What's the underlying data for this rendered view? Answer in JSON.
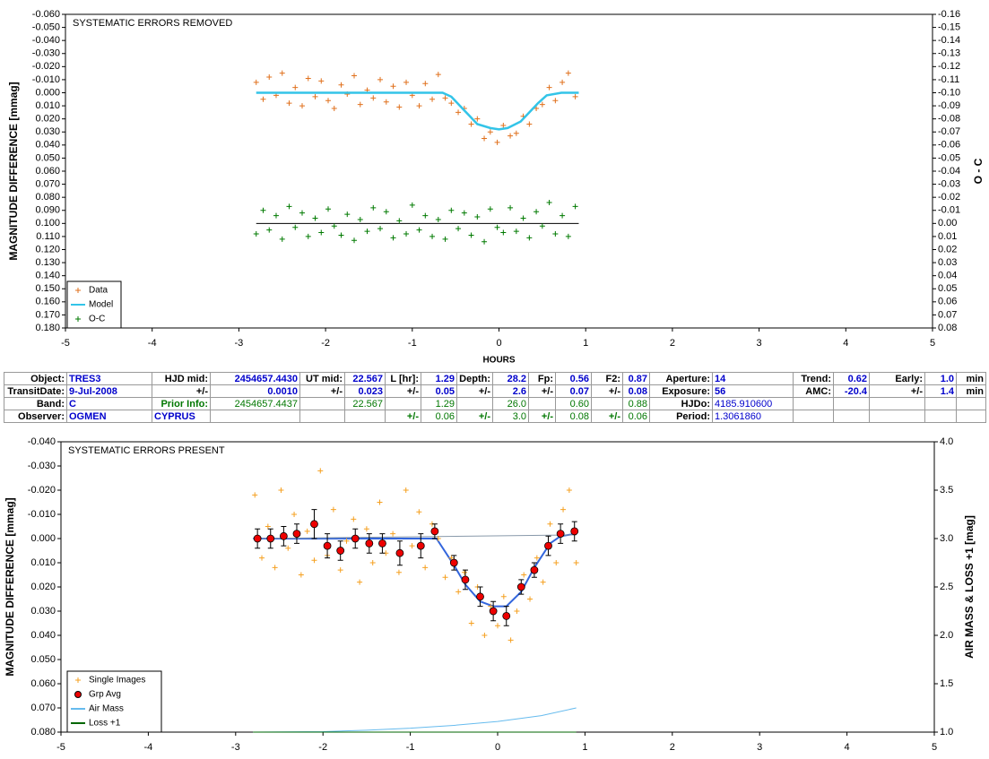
{
  "chart_data": [
    {
      "type": "scatter",
      "title": "SYSTEMATIC ERRORS REMOVED",
      "x_label": "HOURS",
      "y_label": "MAGNITUDE DIFFERENCE [mmag]",
      "y2_label": "O - C",
      "xlim": [
        -5,
        5
      ],
      "xticks": [
        -5,
        -4,
        -3,
        -2,
        -1,
        0,
        1,
        2,
        3,
        4,
        5
      ],
      "ylim": [
        -0.06,
        0.18
      ],
      "y_inverted": true,
      "yticks": [
        {
          "value": -0.06,
          "label": "-0.060"
        },
        {
          "value": -0.05,
          "label": "-0.050"
        },
        {
          "value": -0.04,
          "label": "-0.040"
        },
        {
          "value": -0.03,
          "label": "-0.030"
        },
        {
          "value": -0.02,
          "label": "-0.020"
        },
        {
          "value": -0.01,
          "label": "-0.010"
        },
        {
          "value": 0,
          "label": "0.000"
        },
        {
          "value": 0.01,
          "label": "0.010"
        },
        {
          "value": 0.02,
          "label": "0.020"
        },
        {
          "value": 0.03,
          "label": "0.030"
        },
        {
          "value": 0.04,
          "label": "0.040"
        },
        {
          "value": 0.05,
          "label": "0.050"
        },
        {
          "value": 0.06,
          "label": "0.060"
        },
        {
          "value": 0.07,
          "label": "0.070"
        },
        {
          "value": 0.08,
          "label": "0.080"
        },
        {
          "value": 0.09,
          "label": "0.090"
        },
        {
          "value": 0.1,
          "label": "0.100"
        },
        {
          "value": 0.11,
          "label": "0.110"
        },
        {
          "value": 0.12,
          "label": "0.120"
        },
        {
          "value": 0.13,
          "label": "0.130"
        },
        {
          "value": 0.14,
          "label": "0.140"
        },
        {
          "value": 0.15,
          "label": "0.150"
        },
        {
          "value": 0.16,
          "label": "0.160"
        },
        {
          "value": 0.17,
          "label": "0.170"
        },
        {
          "value": 0.18,
          "label": "0.180"
        }
      ],
      "y2lim": [
        -0.16,
        0.08
      ],
      "y2_inverted": true,
      "y2ticks": [
        -0.16,
        -0.15,
        -0.14,
        -0.13,
        -0.12,
        -0.11,
        {
          "value": -0.1,
          "label": "-0.10"
        },
        -0.09,
        -0.08,
        -0.07,
        -0.06,
        -0.05,
        -0.04,
        -0.03,
        -0.02,
        -0.01,
        {
          "value": 0,
          "label": "0.00"
        },
        0.01,
        0.02,
        0.03,
        0.04,
        0.05,
        0.06,
        0.07,
        0.08
      ],
      "legend": "lower left",
      "x": [
        -2.8,
        -2.72,
        -2.65,
        -2.57,
        -2.5,
        -2.42,
        -2.35,
        -2.27,
        -2.2,
        -2.12,
        -2.05,
        -1.97,
        -1.9,
        -1.82,
        -1.75,
        -1.67,
        -1.6,
        -1.52,
        -1.45,
        -1.37,
        -1.3,
        -1.22,
        -1.15,
        -1.07,
        -1.0,
        -0.92,
        -0.85,
        -0.77,
        -0.7,
        -0.62,
        -0.55,
        -0.47,
        -0.4,
        -0.32,
        -0.25,
        -0.17,
        -0.1,
        -0.02,
        0.05,
        0.13,
        0.2,
        0.28,
        0.35,
        0.43,
        0.5,
        0.58,
        0.65,
        0.73,
        0.8,
        0.88
      ],
      "series": [
        {
          "name": "Data",
          "color": "#e0701c",
          "marker": "plus",
          "values": [
            -0.008,
            0.005,
            -0.012,
            0.002,
            -0.015,
            0.008,
            -0.004,
            0.01,
            -0.011,
            0.003,
            -0.009,
            0.006,
            0.012,
            -0.006,
            0.001,
            -0.013,
            0.009,
            -0.002,
            0.004,
            -0.01,
            0.007,
            -0.005,
            0.011,
            -0.008,
            0.002,
            0.01,
            -0.007,
            0.005,
            -0.014,
            0.004,
            0.008,
            0.015,
            0.012,
            0.024,
            0.02,
            0.035,
            0.03,
            0.038,
            0.025,
            0.033,
            0.031,
            0.018,
            0.024,
            0.012,
            0.009,
            -0.004,
            0.006,
            -0.008,
            -0.015,
            0.003
          ]
        },
        {
          "name": "Model",
          "color": "#33c4e8",
          "marker": "line",
          "x": [
            -2.8,
            -0.65,
            -0.55,
            -0.45,
            -0.35,
            -0.25,
            -0.1,
            0,
            0.1,
            0.25,
            0.35,
            0.45,
            0.55,
            0.72,
            0.92
          ],
          "values": [
            0,
            0,
            0.003,
            0.01,
            0.017,
            0.024,
            0.027,
            0.028,
            0.027,
            0.022,
            0.015,
            0.008,
            0.002,
            0,
            0
          ]
        },
        {
          "name": "O-C",
          "color": "#007a00",
          "marker": "plus",
          "axis": "y2",
          "values": [
            0.008,
            -0.01,
            0.005,
            -0.006,
            0.012,
            -0.013,
            0.003,
            -0.008,
            0.01,
            -0.004,
            0.007,
            -0.011,
            0.002,
            0.009,
            -0.007,
            0.013,
            -0.003,
            0.006,
            -0.012,
            0.004,
            -0.009,
            0.011,
            -0.002,
            0.008,
            -0.014,
            0.005,
            -0.006,
            0.01,
            -0.003,
            0.012,
            -0.01,
            0.004,
            -0.008,
            0.009,
            -0.005,
            0.014,
            -0.011,
            0.003,
            0.007,
            -0.012,
            0.006,
            -0.004,
            0.011,
            -0.009,
            0.002,
            -0.016,
            0.008,
            -0.006,
            0.01,
            -0.013
          ]
        }
      ],
      "lines": [
        {
          "color": "#000000",
          "axis": "y2",
          "x": [
            -2.8,
            0.92
          ],
          "values": [
            0,
            0
          ]
        }
      ]
    },
    {
      "type": "scatter",
      "title": "SYSTEMATIC ERRORS PRESENT",
      "y_label": "MAGNITUDE DIFFERENCE [mmag]",
      "y2_label": "AIR MASS & LOSS +1 [mag]",
      "xlim": [
        -5,
        5
      ],
      "xticks": [
        -5,
        -4,
        -3,
        -2,
        -1,
        0,
        1,
        2,
        3,
        4,
        5
      ],
      "ylim": [
        -0.04,
        0.08
      ],
      "y_inverted": true,
      "yticks": [
        {
          "value": -0.04,
          "label": "-0.040"
        },
        {
          "value": -0.03,
          "label": "-0.030"
        },
        {
          "value": -0.02,
          "label": "-0.020"
        },
        {
          "value": -0.01,
          "label": "-0.010"
        },
        {
          "value": 0,
          "label": "0.000"
        },
        {
          "value": 0.01,
          "label": "0.010"
        },
        {
          "value": 0.02,
          "label": "0.020"
        },
        {
          "value": 0.03,
          "label": "0.030"
        },
        {
          "value": 0.04,
          "label": "0.040"
        },
        {
          "value": 0.05,
          "label": "0.050"
        },
        {
          "value": 0.06,
          "label": "0.060"
        },
        {
          "value": 0.07,
          "label": "0.070"
        },
        {
          "value": 0.08,
          "label": "0.080"
        }
      ],
      "y2lim": [
        1,
        4
      ],
      "y2ticks": [
        {
          "value": 1,
          "label": "1.0"
        },
        1.5,
        {
          "value": 2,
          "label": "2.0"
        },
        2.5,
        {
          "value": 3,
          "label": "3.0"
        },
        3.5,
        {
          "value": 4,
          "label": "4.0"
        }
      ],
      "legend": "lower left",
      "x": [
        -2.78,
        -2.7,
        -2.63,
        -2.55,
        -2.48,
        -2.4,
        -2.33,
        -2.25,
        -2.18,
        -2.1,
        -2.03,
        -1.95,
        -1.88,
        -1.8,
        -1.73,
        -1.65,
        -1.58,
        -1.5,
        -1.43,
        -1.35,
        -1.28,
        -1.2,
        -1.13,
        -1.05,
        -0.98,
        -0.9,
        -0.83,
        -0.75,
        -0.68,
        -0.6,
        -0.53,
        -0.45,
        -0.38,
        -0.3,
        -0.23,
        -0.15,
        -0.08,
        0.0,
        0.07,
        0.15,
        0.22,
        0.3,
        0.37,
        0.45,
        0.52,
        0.6,
        0.67,
        0.75,
        0.82,
        0.9
      ],
      "series": [
        {
          "name": "Single Images",
          "color": "#f5a020",
          "marker": "plus",
          "values": [
            -0.018,
            0.008,
            -0.005,
            0.012,
            -0.02,
            0.004,
            -0.01,
            0.015,
            -0.003,
            0.009,
            -0.028,
            0.007,
            -0.012,
            0.013,
            0.001,
            -0.008,
            0.018,
            -0.004,
            0.01,
            -0.015,
            0.006,
            -0.002,
            0.014,
            -0.02,
            0.003,
            -0.011,
            0.012,
            -0.006,
            0.0,
            0.016,
            0.008,
            0.022,
            0.014,
            0.035,
            0.02,
            0.04,
            0.028,
            0.036,
            0.024,
            0.042,
            0.03,
            0.015,
            0.025,
            0.008,
            0.018,
            -0.006,
            0.01,
            -0.012,
            -0.02,
            0.01
          ]
        },
        {
          "name": "Grp Avg",
          "color": "#ee0000",
          "marker": "circle",
          "x": [
            -2.75,
            -2.6,
            -2.45,
            -2.3,
            -2.1,
            -1.95,
            -1.8,
            -1.63,
            -1.47,
            -1.32,
            -1.12,
            -0.88,
            -0.72,
            -0.5,
            -0.37,
            -0.2,
            -0.05,
            0.1,
            0.27,
            0.42,
            0.58,
            0.72,
            0.88
          ],
          "values": [
            0.0,
            0.0,
            -0.001,
            -0.002,
            -0.006,
            0.003,
            0.005,
            0.0,
            0.002,
            0.002,
            0.006,
            0.003,
            -0.003,
            0.01,
            0.017,
            0.024,
            0.03,
            0.032,
            0.02,
            0.013,
            0.003,
            -0.002,
            -0.003
          ],
          "errors": [
            0.004,
            0.004,
            0.004,
            0.004,
            0.006,
            0.005,
            0.004,
            0.004,
            0.004,
            0.004,
            0.005,
            0.005,
            0.003,
            0.003,
            0.004,
            0.004,
            0.004,
            0.004,
            0.003,
            0.003,
            0.004,
            0.004,
            0.004
          ]
        },
        {
          "name": "Air Mass",
          "color": "#66bbee",
          "marker": "line",
          "axis": "y2",
          "x": [
            -2.8,
            -2.0,
            -1.5,
            -1.0,
            -0.5,
            0,
            0.5,
            0.9
          ],
          "values": [
            1.0,
            1.005,
            1.02,
            1.04,
            1.07,
            1.11,
            1.17,
            1.25
          ]
        },
        {
          "name": "Loss +1",
          "color": "#006600",
          "marker": "line",
          "axis": "y2",
          "x": [
            -2.8,
            0.9
          ],
          "values": [
            1,
            1
          ]
        }
      ],
      "lines": [
        {
          "color": "#3366dd",
          "x": [
            -2.8,
            -0.7,
            -0.5,
            -0.37,
            -0.2,
            -0.05,
            0.1,
            0.27,
            0.42,
            0.6,
            0.72,
            0.9
          ],
          "values": [
            0,
            0,
            0.011,
            0.019,
            0.026,
            0.028,
            0.028,
            0.022,
            0.012,
            0.002,
            -0.001,
            -0.002
          ]
        },
        {
          "color": "#8899aa",
          "x": [
            -2.8,
            0.9
          ],
          "values": [
            0,
            -0.0015
          ]
        }
      ]
    }
  ],
  "table": {
    "rows": [
      [
        "Object:",
        "TRES3",
        "HJD mid:",
        "2454657.4430",
        "UT mid:",
        "22.567",
        "L [hr]:",
        "1.29",
        "Depth:",
        "28.2",
        "Fp:",
        "0.56",
        "F2:",
        "0.87",
        "Aperture:",
        "14",
        "Trend:",
        "0.62",
        "Early:",
        "1.0",
        "min"
      ],
      [
        "TransitDate:",
        "9-Jul-2008",
        "+/-",
        "0.0010",
        "+/-",
        "0.023",
        "+/-",
        "0.05",
        "+/-",
        "2.6",
        "+/-",
        "0.07",
        "+/-",
        "0.08",
        "Exposure:",
        "56",
        "AMC:",
        "-20.4",
        "+/-",
        "1.4",
        "min"
      ],
      [
        "Band:",
        "C",
        "Prior Info:",
        "2454657.4437",
        null,
        "22.567",
        null,
        "1.29",
        null,
        "26.0",
        null,
        "0.60",
        null,
        "0.88",
        "HJDo:",
        "4185.910600",
        null,
        null,
        null,
        null,
        null
      ],
      [
        "Observer:",
        "OGMEN",
        "CYPRUS",
        null,
        null,
        null,
        "+/-",
        "0.06",
        "+/-",
        "3.0",
        "+/-",
        "0.08",
        "+/-",
        "0.06",
        "Period:",
        "1.3061860",
        null,
        null,
        null,
        null,
        null
      ]
    ]
  }
}
